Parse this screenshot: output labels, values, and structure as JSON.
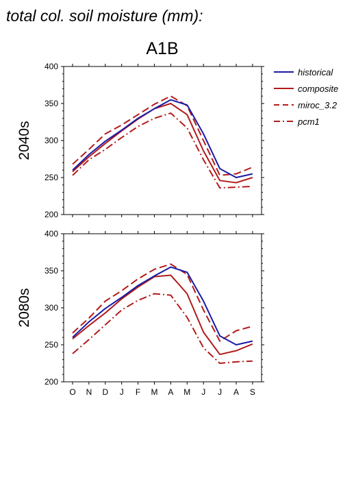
{
  "figure_title": "total col. soil moisture (mm):",
  "colors": {
    "historical": "#1a1aa6",
    "model": "#b21a1a"
  },
  "chart_data": [
    {
      "type": "line",
      "title": "A1B",
      "ylabel": "2040s",
      "xlabel": "",
      "categories": [
        "O",
        "N",
        "D",
        "J",
        "F",
        "M",
        "A",
        "M",
        "J",
        "J",
        "A",
        "S"
      ],
      "ylim": [
        200,
        400
      ],
      "yticks": [
        200,
        250,
        300,
        350,
        400
      ],
      "grid": false,
      "series": [
        {
          "name": "historical",
          "style": "solid",
          "color": "#1a1aa6",
          "values": [
            260,
            281,
            299,
            314,
            330,
            343,
            355,
            348,
            309,
            262,
            250,
            255
          ]
        },
        {
          "name": "composite",
          "style": "solid",
          "color": "#b21a1a",
          "values": [
            258,
            278,
            296,
            313,
            329,
            343,
            350,
            335,
            286,
            246,
            243,
            250
          ]
        },
        {
          "name": "miroc_3.2",
          "style": "dashed",
          "color": "#b21a1a",
          "values": [
            268,
            288,
            309,
            321,
            335,
            349,
            360,
            347,
            300,
            253,
            255,
            264
          ]
        },
        {
          "name": "pcm1",
          "style": "dashdot",
          "color": "#b21a1a",
          "values": [
            253,
            274,
            288,
            304,
            319,
            330,
            337,
            317,
            274,
            236,
            237,
            238
          ]
        }
      ]
    },
    {
      "type": "line",
      "title": "",
      "ylabel": "2080s",
      "xlabel": "",
      "categories": [
        "O",
        "N",
        "D",
        "J",
        "F",
        "M",
        "A",
        "M",
        "J",
        "J",
        "A",
        "S"
      ],
      "ylim": [
        200,
        400
      ],
      "yticks": [
        200,
        250,
        300,
        350,
        400
      ],
      "grid": false,
      "series": [
        {
          "name": "historical",
          "style": "solid",
          "color": "#1a1aa6",
          "values": [
            260,
            281,
            299,
            314,
            330,
            343,
            355,
            348,
            309,
            262,
            250,
            255
          ]
        },
        {
          "name": "composite",
          "style": "solid",
          "color": "#b21a1a",
          "values": [
            258,
            276,
            293,
            312,
            328,
            342,
            344,
            319,
            267,
            237,
            242,
            251
          ]
        },
        {
          "name": "miroc_3.2",
          "style": "dashed",
          "color": "#b21a1a",
          "values": [
            266,
            286,
            309,
            323,
            339,
            352,
            359,
            345,
            297,
            255,
            269,
            275
          ]
        },
        {
          "name": "pcm1",
          "style": "dashdot",
          "color": "#b21a1a",
          "values": [
            238,
            257,
            277,
            297,
            310,
            319,
            317,
            287,
            246,
            225,
            227,
            228
          ]
        }
      ]
    }
  ],
  "legend": {
    "placement": "right",
    "entries": [
      {
        "label": "historical",
        "style": "solid",
        "color": "#1a1aa6"
      },
      {
        "label": "composite",
        "style": "solid",
        "color": "#b21a1a"
      },
      {
        "label": "miroc_3.2",
        "style": "dashed",
        "color": "#b21a1a"
      },
      {
        "label": "pcm1",
        "style": "dashdot",
        "color": "#b21a1a"
      }
    ]
  }
}
